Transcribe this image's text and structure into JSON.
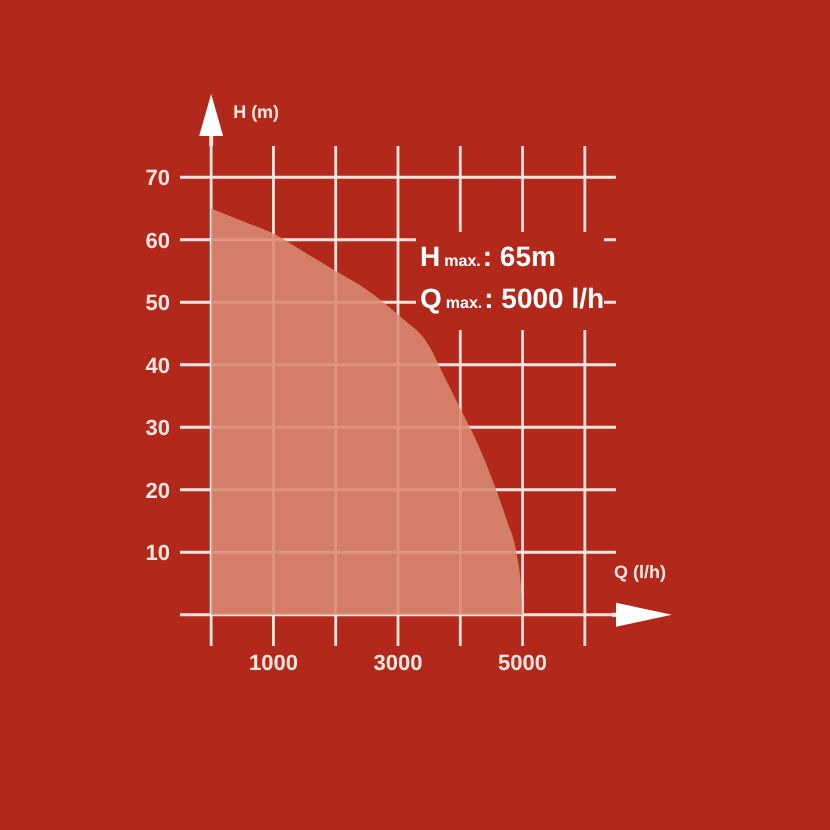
{
  "chart_data": {
    "type": "area",
    "xlabel": "Q (l/h)",
    "ylabel": "H (m)",
    "x": [
      0,
      500,
      1000,
      1500,
      2000,
      2500,
      3000,
      3500,
      3750,
      4000,
      4250,
      4500,
      4750,
      4900,
      4980,
      5000
    ],
    "values": [
      65,
      63,
      61,
      58,
      55,
      52,
      48,
      43,
      38,
      33,
      28,
      22,
      15,
      10,
      4,
      0
    ],
    "color": "#d98a72",
    "xlim": [
      -500,
      6500
    ],
    "ylim": [
      -5,
      75
    ],
    "xticks": [
      {
        "value": 0,
        "label": null
      },
      1000,
      {
        "value": 2000,
        "label": null
      },
      3000,
      {
        "value": 4000,
        "label": null
      },
      5000,
      {
        "value": 6000,
        "label": null
      }
    ],
    "yticks": [
      {
        "value": 0,
        "label": null
      },
      10,
      20,
      30,
      40,
      50,
      60,
      70
    ],
    "grid": true,
    "annotations": [
      "H$_{max.}$: 65m",
      "Q$_{max.}$: 5000 l/h"
    ]
  }
}
